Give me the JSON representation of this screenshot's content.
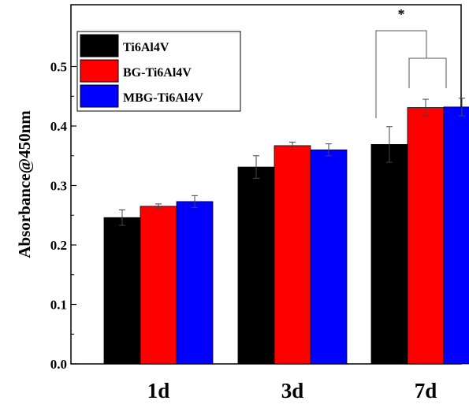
{
  "chart_data": {
    "type": "bar",
    "categories": [
      "1d",
      "3d",
      "7d"
    ],
    "series": [
      {
        "name": "Ti6Al4V",
        "color": "#000000",
        "values": [
          0.246,
          0.331,
          0.369
        ],
        "errors": [
          0.013,
          0.019,
          0.03
        ]
      },
      {
        "name": "BG-Ti6Al4V",
        "color": "#ff0000",
        "values": [
          0.265,
          0.367,
          0.431
        ],
        "errors": [
          0.004,
          0.006,
          0.014
        ]
      },
      {
        "name": "MBG-Ti6Al4V",
        "color": "#0000ff",
        "values": [
          0.273,
          0.36,
          0.432
        ],
        "errors": [
          0.01,
          0.01,
          0.015
        ]
      }
    ],
    "xlabel": "",
    "ylabel": "Absorbance@450nm",
    "ylim": [
      0.0,
      0.55
    ],
    "yticks": [
      "0.0",
      "0.1",
      "0.2",
      "0.3",
      "0.4",
      "0.5"
    ],
    "legend_position": "top-left",
    "significance": {
      "label": "*",
      "category": "7d"
    }
  }
}
